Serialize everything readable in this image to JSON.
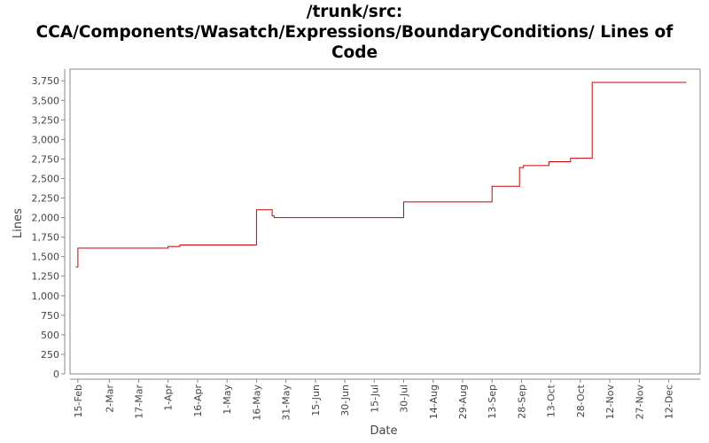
{
  "title_line1": "/trunk/src:",
  "title_line2": "CCA/Components/Wasatch/Expressions/BoundaryConditions/ Lines of",
  "title_line3": "Code",
  "chart_data": {
    "type": "line",
    "title": "/trunk/src: CCA/Components/Wasatch/Expressions/BoundaryConditions/ Lines of Code",
    "xlabel": "Date",
    "ylabel": "Lines",
    "ylim": [
      0,
      3900
    ],
    "xlim": [
      "2012-02-11",
      "2012-12-28"
    ],
    "grid": false,
    "line_color": "#cc0000",
    "step": true,
    "y_ticks": [
      0,
      250,
      500,
      750,
      1000,
      1250,
      1500,
      1750,
      2000,
      2250,
      2500,
      2750,
      3000,
      3250,
      3500,
      3750
    ],
    "y_tick_labels": [
      "0",
      "250",
      "500",
      "750",
      "1,000",
      "1,250",
      "1,500",
      "1,750",
      "2,000",
      "2,250",
      "2,500",
      "2,750",
      "3,000",
      "3,250",
      "3,500",
      "3,750"
    ],
    "x_ticks": [
      "2012-02-15",
      "2012-03-02",
      "2012-03-17",
      "2012-04-01",
      "2012-04-16",
      "2012-05-01",
      "2012-05-16",
      "2012-05-31",
      "2012-06-15",
      "2012-06-30",
      "2012-07-15",
      "2012-07-30",
      "2012-08-14",
      "2012-08-29",
      "2012-09-13",
      "2012-09-28",
      "2012-10-13",
      "2012-10-28",
      "2012-11-12",
      "2012-11-27",
      "2012-12-12"
    ],
    "x_tick_labels": [
      "15-Feb",
      "2-Mar",
      "17-Mar",
      "1-Apr",
      "16-Apr",
      "1-May",
      "16-May",
      "31-May",
      "15-Jun",
      "30-Jun",
      "15-Jul",
      "30-Jul",
      "14-Aug",
      "29-Aug",
      "13-Sep",
      "28-Sep",
      "13-Oct",
      "28-Oct",
      "12-Nov",
      "27-Nov",
      "12-Dec"
    ],
    "series": [
      {
        "x": [
          "2012-02-14",
          "2012-02-15",
          "2012-04-01",
          "2012-04-07",
          "2012-05-16",
          "2012-05-24",
          "2012-05-25",
          "2012-07-30",
          "2012-09-13",
          "2012-09-27",
          "2012-09-29",
          "2012-10-12",
          "2012-10-23",
          "2012-11-03",
          "2012-12-21"
        ],
        "values": [
          1370,
          1610,
          1630,
          1650,
          2100,
          2020,
          2000,
          2200,
          2400,
          2640,
          2665,
          2715,
          2760,
          3730,
          3730
        ]
      }
    ]
  }
}
